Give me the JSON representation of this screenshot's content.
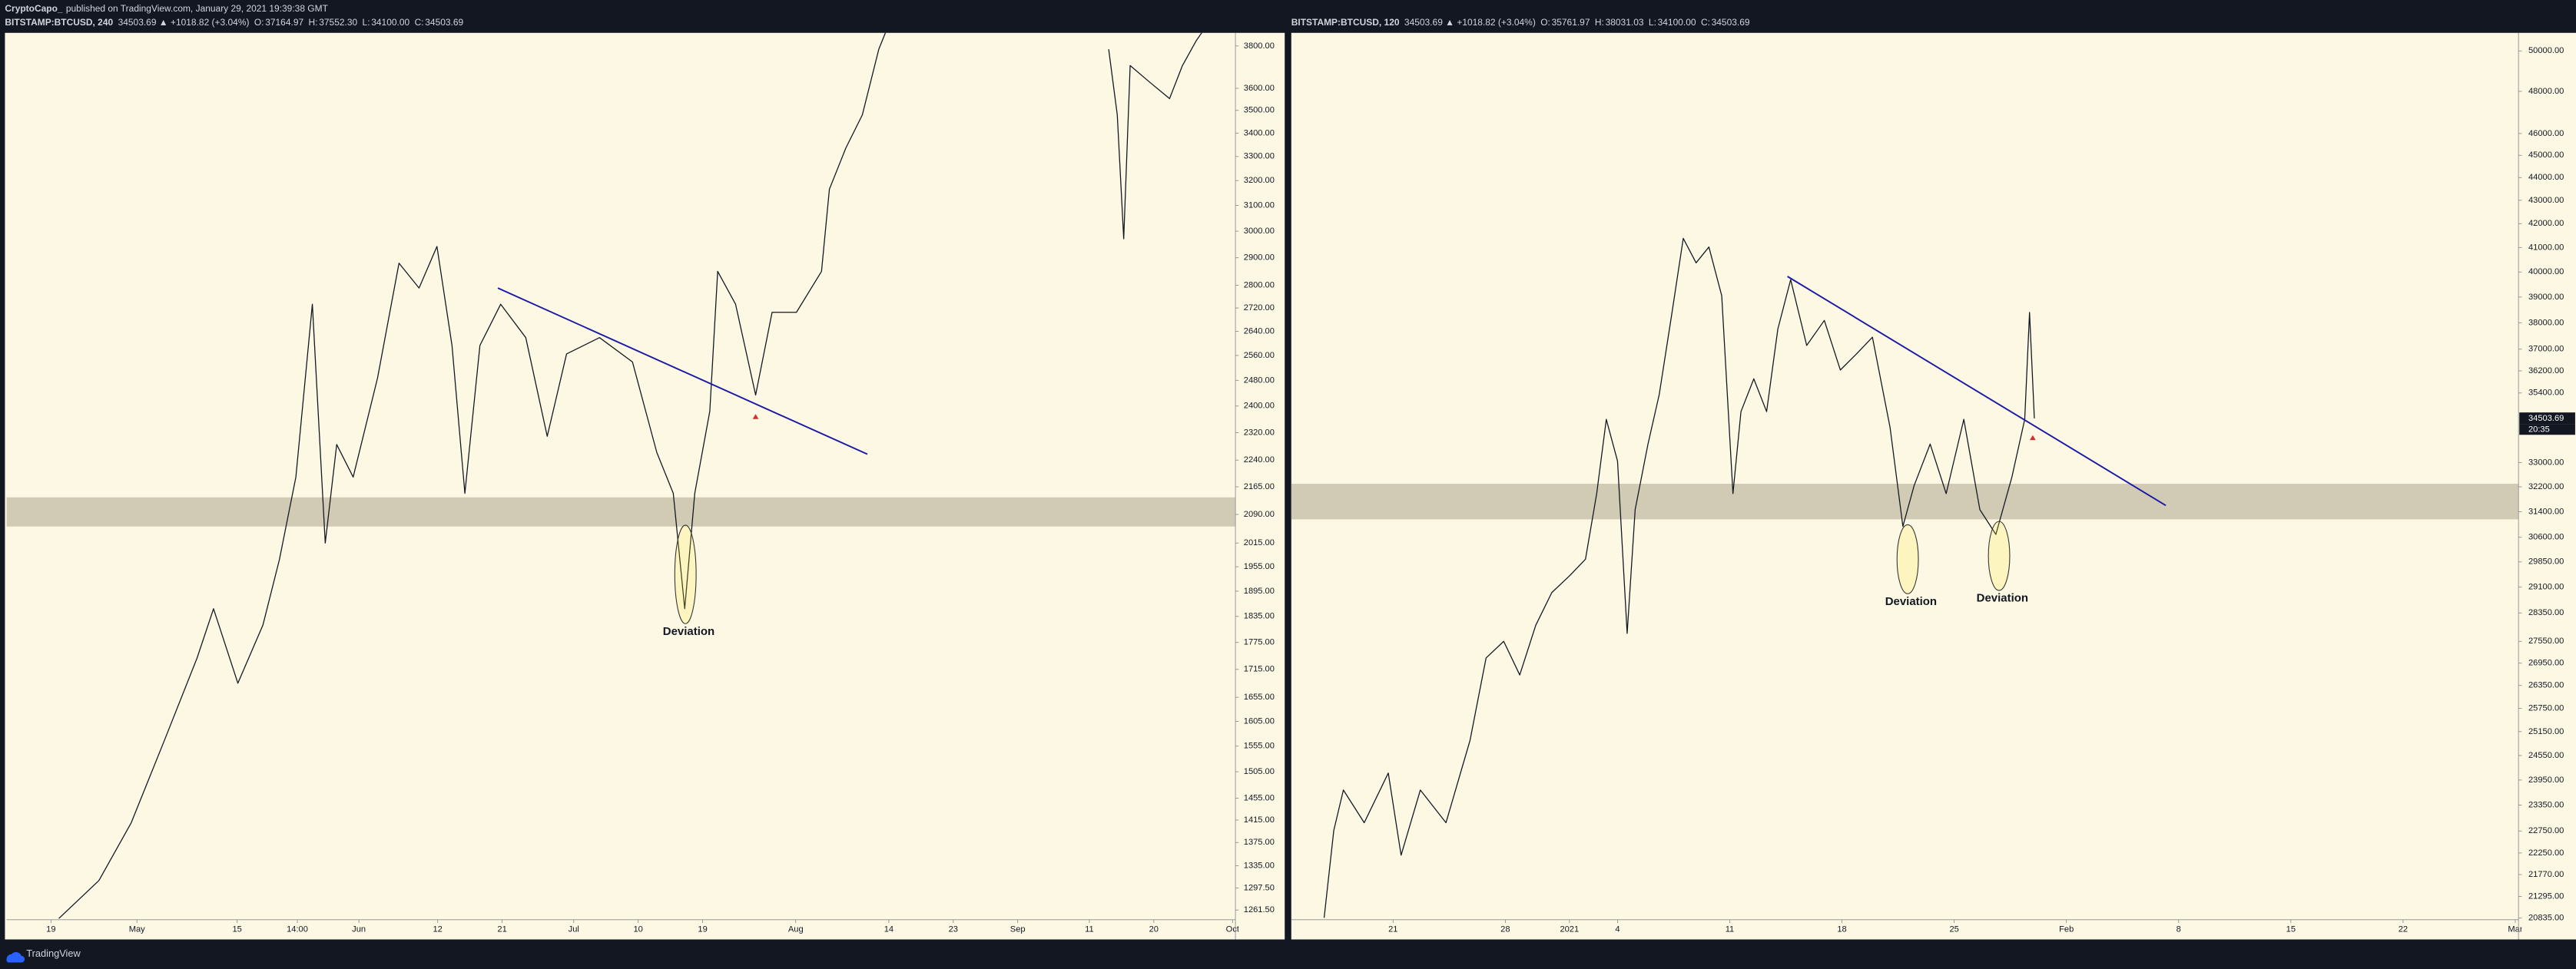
{
  "header": {
    "author": "CryptoCapo_",
    "published": "published on TradingView.com, January 29, 2021 19:39:38 GMT"
  },
  "footer": {
    "brand": "TradingView"
  },
  "chart_data": [
    {
      "type": "line",
      "title": "BITSTAMP:BTCUSD, 240",
      "change": "34503.69 ▲ +1018.82 (+3.04%)",
      "ohlc": [
        {
          "label": "O:",
          "value": "37164.97"
        },
        {
          "label": "H:",
          "value": "37552.30"
        },
        {
          "label": "L:",
          "value": "34100.00"
        },
        {
          "label": "C:",
          "value": "34503.69"
        }
      ],
      "log_scale": true,
      "grid": false,
      "color": "#131722",
      "x": [
        1.1,
        6.7,
        11.2,
        15.8,
        20.4,
        22.7,
        26.1,
        29.6,
        31.9,
        34.2,
        36.5,
        38.3,
        39.9,
        42.2,
        45.6,
        48.6,
        51.4,
        53.9,
        56,
        57.8,
        59.9,
        62.8,
        66.3,
        69.3,
        72,
        76.6,
        81.2,
        84.6,
        86.9,
        88.5,
        89.9,
        92,
        93.1,
        95.6,
        98.4,
        100.7,
        104.1,
        107.6,
        108.7,
        111,
        113.3,
        115.6,
        116.7,
        130,
        147.7,
        148.9,
        149.8,
        150.7,
        153.4,
        156.2,
        158,
        159.9,
        160.8
      ],
      "values": [
        1248,
        1310,
        1410,
        1565,
        1740,
        1853,
        1685,
        1815,
        1973,
        2192,
        2733,
        2015,
        2285,
        2192,
        2487,
        2880,
        2790,
        2942,
        2593,
        2147,
        2593,
        2733,
        2619,
        2309,
        2565,
        2619,
        2539,
        2262,
        2147,
        1853,
        2147,
        2384,
        2850,
        2733,
        2434,
        2705,
        2705,
        2850,
        3165,
        3336,
        3480,
        3784,
        3880,
        null,
        3784,
        3480,
        2971,
        3706,
        3629,
        3553,
        3706,
        3824,
        3870
      ],
      "xlim": [
        -6.2,
        165.4
      ],
      "xticks": [
        {
          "value": 0,
          "label": "19"
        },
        {
          "value": 12,
          "label": "May"
        },
        {
          "value": 26,
          "label": "15"
        },
        {
          "value": 34.4,
          "label": "14:00"
        },
        {
          "value": 43,
          "label": "Jun"
        },
        {
          "value": 54,
          "label": "12"
        },
        {
          "value": 63,
          "label": "21"
        },
        {
          "value": 73,
          "label": "Jul"
        },
        {
          "value": 82,
          "label": "10"
        },
        {
          "value": 91,
          "label": "19"
        },
        {
          "value": 104,
          "label": "Aug"
        },
        {
          "value": 117,
          "label": "14"
        },
        {
          "value": 126,
          "label": "23"
        },
        {
          "value": 135,
          "label": "Sep"
        },
        {
          "value": 145,
          "label": "11"
        },
        {
          "value": 154,
          "label": "20"
        },
        {
          "value": 165,
          "label": "Oct"
        }
      ],
      "ylim": [
        1246,
        3864
      ],
      "yticks": [
        {
          "value": 3800,
          "label": "3800.00"
        },
        {
          "value": 3600,
          "label": "3600.00"
        },
        {
          "value": 3500,
          "label": "3500.00"
        },
        {
          "value": 3400,
          "label": "3400.00"
        },
        {
          "value": 3300,
          "label": "3300.00"
        },
        {
          "value": 3200,
          "label": "3200.00"
        },
        {
          "value": 3100,
          "label": "3100.00"
        },
        {
          "value": 3000,
          "label": "3000.00"
        },
        {
          "value": 2900,
          "label": "2900.00"
        },
        {
          "value": 2800,
          "label": "2800.00"
        },
        {
          "value": 2720,
          "label": "2720.00"
        },
        {
          "value": 2640,
          "label": "2640.00"
        },
        {
          "value": 2560,
          "label": "2560.00"
        },
        {
          "value": 2480,
          "label": "2480.00"
        },
        {
          "value": 2400,
          "label": "2400.00"
        },
        {
          "value": 2320,
          "label": "2320.00"
        },
        {
          "value": 2240,
          "label": "2240.00"
        },
        {
          "value": 2165,
          "label": "2165.00"
        },
        {
          "value": 2090,
          "label": "2090.00"
        },
        {
          "value": 2015,
          "label": "2015.00"
        },
        {
          "value": 1955,
          "label": "1955.00"
        },
        {
          "value": 1895,
          "label": "1895.00"
        },
        {
          "value": 1835,
          "label": "1835.00"
        },
        {
          "value": 1775,
          "label": "1775.00"
        },
        {
          "value": 1715,
          "label": "1715.00"
        },
        {
          "value": 1655,
          "label": "1655.00"
        },
        {
          "value": 1605,
          "label": "1605.00"
        },
        {
          "value": 1555,
          "label": "1555.00"
        },
        {
          "value": 1505,
          "label": "1505.00"
        },
        {
          "value": 1455,
          "label": "1455.00"
        },
        {
          "value": 1415,
          "label": "1415.00"
        },
        {
          "value": 1375,
          "label": "1375.00"
        },
        {
          "value": 1335,
          "label": "1335.00"
        },
        {
          "value": 1297.5,
          "label": "1297.50"
        },
        {
          "value": 1261.5,
          "label": "1261.50"
        }
      ],
      "zone": [
        2058,
        2136
      ],
      "trendline": {
        "color": "#1a1aa6",
        "x": [
          62.4,
          114
        ],
        "values": [
          2790,
          2257
        ]
      },
      "annotations": [
        {
          "text": "Deviation",
          "x": 88.6,
          "y": 1936
        }
      ],
      "marker": {
        "color": "#d32f2f",
        "x": 98.4,
        "y": 2368
      }
    },
    {
      "type": "line",
      "title": "BITSTAMP:BTCUSD, 120",
      "change": "34503.69 ▲ +1018.82 (+3.04%)",
      "ohlc": [
        {
          "label": "O:",
          "value": "35761.97"
        },
        {
          "label": "H:",
          "value": "38031.03"
        },
        {
          "label": "L:",
          "value": "34100.00"
        },
        {
          "label": "C:",
          "value": "34503.69"
        }
      ],
      "log_scale": true,
      "grid": false,
      "color": "#131722",
      "x": [
        -4.3,
        -3.7,
        -3.1,
        -1.8,
        -0.3,
        0.5,
        1.7,
        3.3,
        4.8,
        5.8,
        6.9,
        7.9,
        8.9,
        9.9,
        11,
        12,
        12.7,
        13.3,
        14,
        14.6,
        15.1,
        15.9,
        16.6,
        17.4,
        18.1,
        18.9,
        19.7,
        20.5,
        21.2,
        21.7,
        22.5,
        23.3,
        24,
        24.8,
        25.8,
        26.9,
        27.9,
        28.9,
        29.9,
        31,
        31.8,
        32.5,
        33.5,
        34.5,
        35.6,
        36.6,
        37.6,
        38.6,
        39.4,
        39.7,
        40
      ],
      "values": [
        20840,
        22760,
        23710,
        22940,
        24120,
        22200,
        23710,
        22940,
        24930,
        27090,
        27550,
        26630,
        28000,
        28940,
        29430,
        29930,
        31980,
        34470,
        33050,
        27770,
        31470,
        33620,
        35340,
        38400,
        41380,
        40370,
        41020,
        39050,
        31980,
        34740,
        35910,
        34740,
        37760,
        39690,
        37140,
        38090,
        36230,
        36820,
        37450,
        34190,
        30940,
        32240,
        33620,
        31980,
        34470,
        31470,
        30690,
        32520,
        34470,
        38400,
        34503.69
      ],
      "xlim": [
        -6.35,
        70.2
      ],
      "xticks": [
        {
          "value": 0,
          "label": "21"
        },
        {
          "value": 7,
          "label": "28"
        },
        {
          "value": 11,
          "label": "2021"
        },
        {
          "value": 14,
          "label": "4"
        },
        {
          "value": 21,
          "label": "11"
        },
        {
          "value": 28,
          "label": "18"
        },
        {
          "value": 35,
          "label": "25"
        },
        {
          "value": 42,
          "label": "Feb"
        },
        {
          "value": 49,
          "label": "8"
        },
        {
          "value": 56,
          "label": "15"
        },
        {
          "value": 63,
          "label": "22"
        },
        {
          "value": 70,
          "label": "Mar"
        }
      ],
      "ylim": [
        20800,
        50920
      ],
      "yticks": [
        {
          "value": 50000,
          "label": "50000.00"
        },
        {
          "value": 48000,
          "label": "48000.00"
        },
        {
          "value": 46000,
          "label": "46000.00"
        },
        {
          "value": 45000,
          "label": "45000.00"
        },
        {
          "value": 44000,
          "label": "44000.00"
        },
        {
          "value": 43000,
          "label": "43000.00"
        },
        {
          "value": 42000,
          "label": "42000.00"
        },
        {
          "value": 41000,
          "label": "41000.00"
        },
        {
          "value": 40000,
          "label": "40000.00"
        },
        {
          "value": 39000,
          "label": "39000.00"
        },
        {
          "value": 38000,
          "label": "38000.00"
        },
        {
          "value": 37000,
          "label": "37000.00"
        },
        {
          "value": 36200,
          "label": "36200.00"
        },
        {
          "value": 35400,
          "label": "35400.00"
        },
        {
          "value": 33000,
          "label": "33000.00"
        },
        {
          "value": 32200,
          "label": "32200.00"
        },
        {
          "value": 31400,
          "label": "31400.00"
        },
        {
          "value": 30600,
          "label": "30600.00"
        },
        {
          "value": 29850,
          "label": "29850.00"
        },
        {
          "value": 29100,
          "label": "29100.00"
        },
        {
          "value": 28350,
          "label": "28350.00"
        },
        {
          "value": 27550,
          "label": "27550.00"
        },
        {
          "value": 26950,
          "label": "26950.00"
        },
        {
          "value": 26350,
          "label": "26350.00"
        },
        {
          "value": 25750,
          "label": "25750.00"
        },
        {
          "value": 25150,
          "label": "25150.00"
        },
        {
          "value": 24550,
          "label": "24550.00"
        },
        {
          "value": 23950,
          "label": "23950.00"
        },
        {
          "value": 23350,
          "label": "23350.00"
        },
        {
          "value": 22750,
          "label": "22750.00"
        },
        {
          "value": 22250,
          "label": "22250.00"
        },
        {
          "value": 21770,
          "label": "21770.00"
        },
        {
          "value": 21295,
          "label": "21295.00"
        },
        {
          "value": 20835,
          "label": "20835.00"
        }
      ],
      "zone": [
        31160,
        32300
      ],
      "trendline": {
        "color": "#1a1aa6",
        "x": [
          24.6,
          48.2
        ],
        "values": [
          39820,
          31600
        ]
      },
      "annotations": [
        {
          "text": "Deviation",
          "x": 32.1,
          "y": 29930
        },
        {
          "text": "Deviation",
          "x": 37.8,
          "y": 30030
        }
      ],
      "marker": {
        "color": "#d32f2f",
        "x": 39.9,
        "y": 33840
      },
      "last_price": 34503.69,
      "countdown": "20:35"
    }
  ]
}
